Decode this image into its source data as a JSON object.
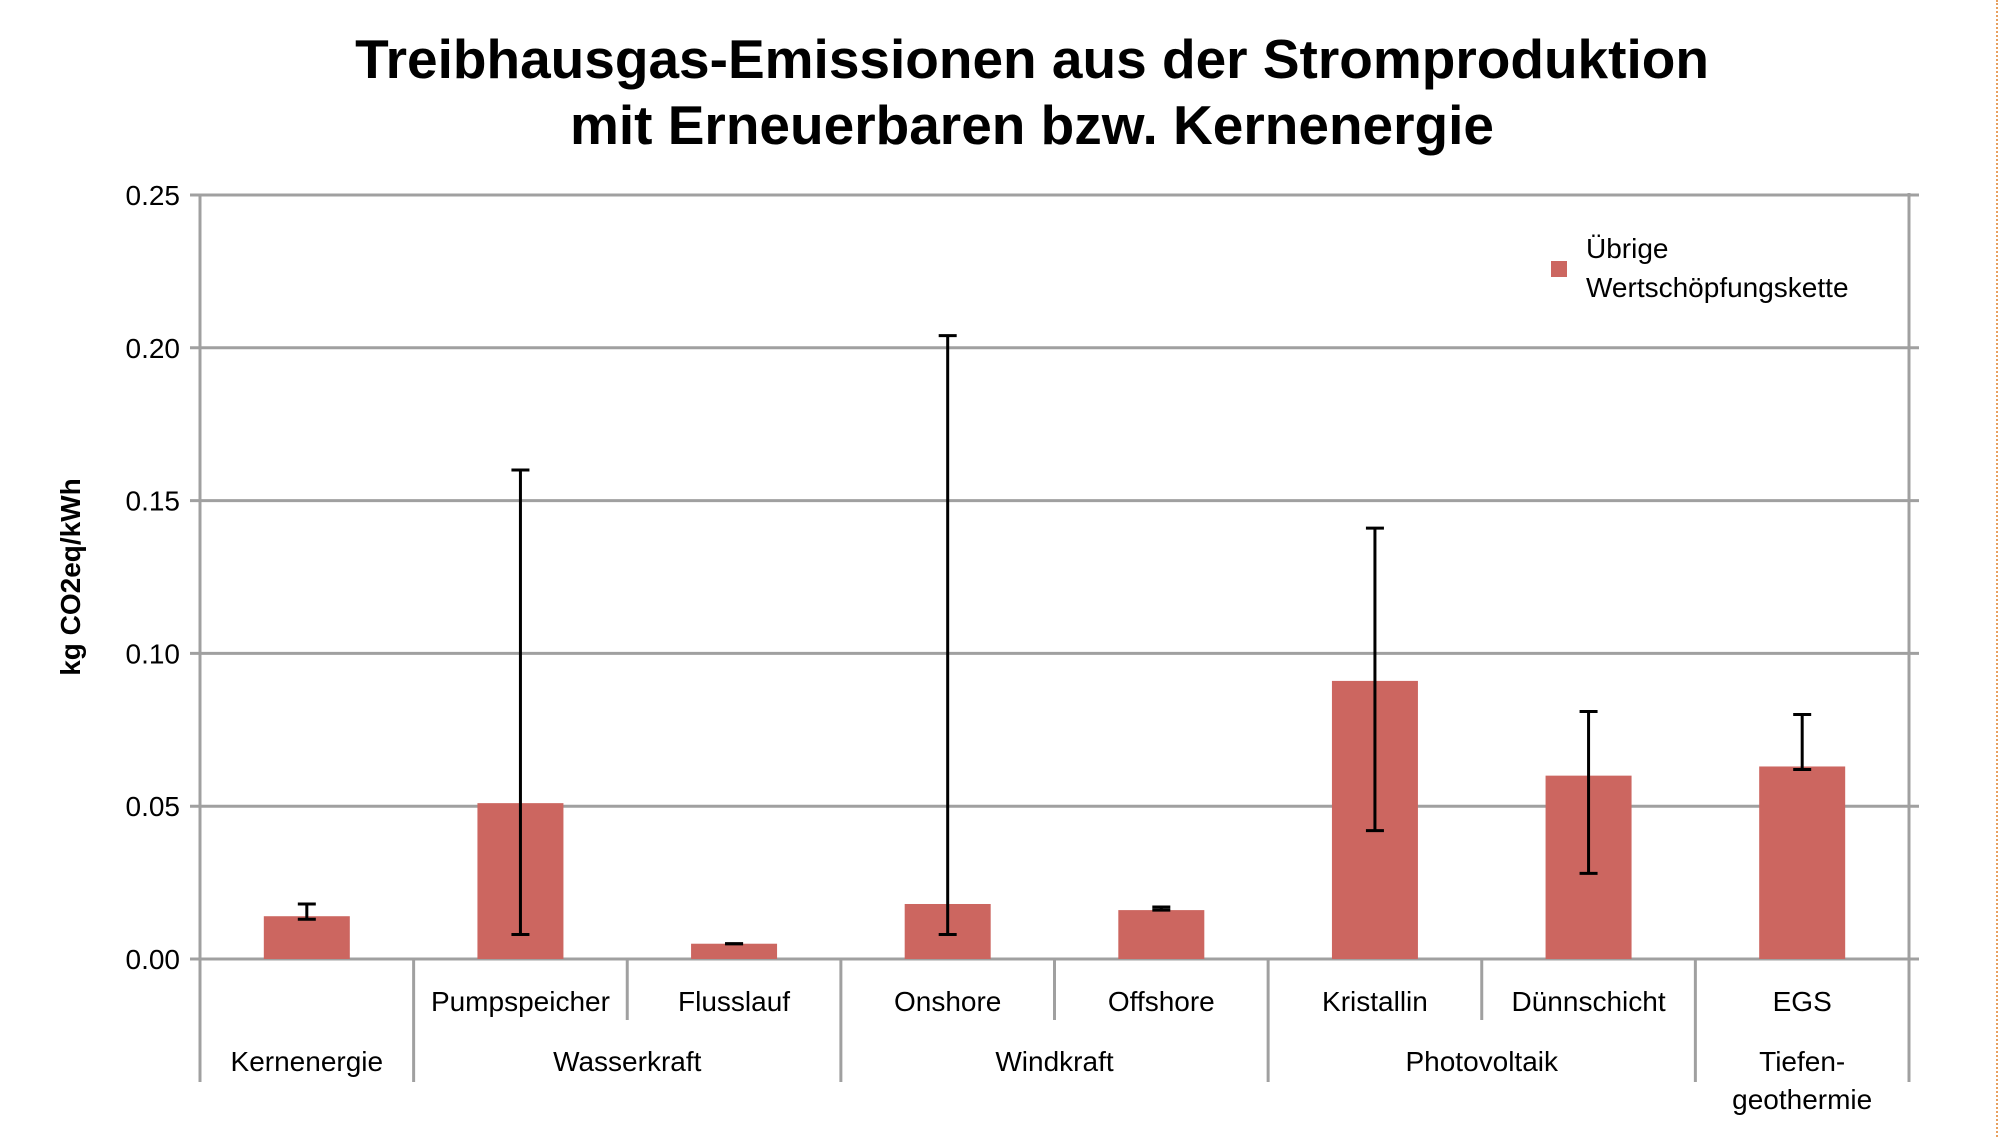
{
  "chart_data": {
    "type": "bar",
    "title_lines": [
      "Treibhausgas-Emissionen aus der Stromproduktion",
      "mit Erneuerbaren bzw. Kernenergie"
    ],
    "ylabel": "kg CO2eq/kWh",
    "ylim": [
      0,
      0.25
    ],
    "yticks": [
      "0.00",
      "0.05",
      "0.10",
      "0.15",
      "0.20",
      "0.25"
    ],
    "grid": true,
    "legend_position": "top-right",
    "categories": [
      "",
      "Pumpspeicher",
      "Flusslauf",
      "Onshore",
      "Offshore",
      "Kristallin",
      "Dünnschicht",
      "EGS"
    ],
    "groups": [
      {
        "lines": [
          "Kernenergie"
        ],
        "span": 1
      },
      {
        "lines": [
          "Wasserkraft"
        ],
        "span": 2
      },
      {
        "lines": [
          "Windkraft"
        ],
        "span": 2
      },
      {
        "lines": [
          "Photovoltaik"
        ],
        "span": 2
      },
      {
        "lines": [
          "Tiefen-",
          "geothermie"
        ],
        "span": 1
      }
    ],
    "series": [
      {
        "name": "Übrige Wertschöpfungskette",
        "legend_lines": [
          "Übrige",
          "Wertschöpfungskette"
        ],
        "color": "#CC6660",
        "values": [
          0.014,
          0.051,
          0.005,
          0.018,
          0.016,
          0.091,
          0.06,
          0.063
        ],
        "error_low": [
          0.013,
          0.008,
          0.005,
          0.008,
          0.016,
          0.042,
          0.028,
          0.062
        ],
        "error_high": [
          0.018,
          0.16,
          0.005,
          0.204,
          0.017,
          0.141,
          0.081,
          0.08
        ]
      }
    ]
  }
}
